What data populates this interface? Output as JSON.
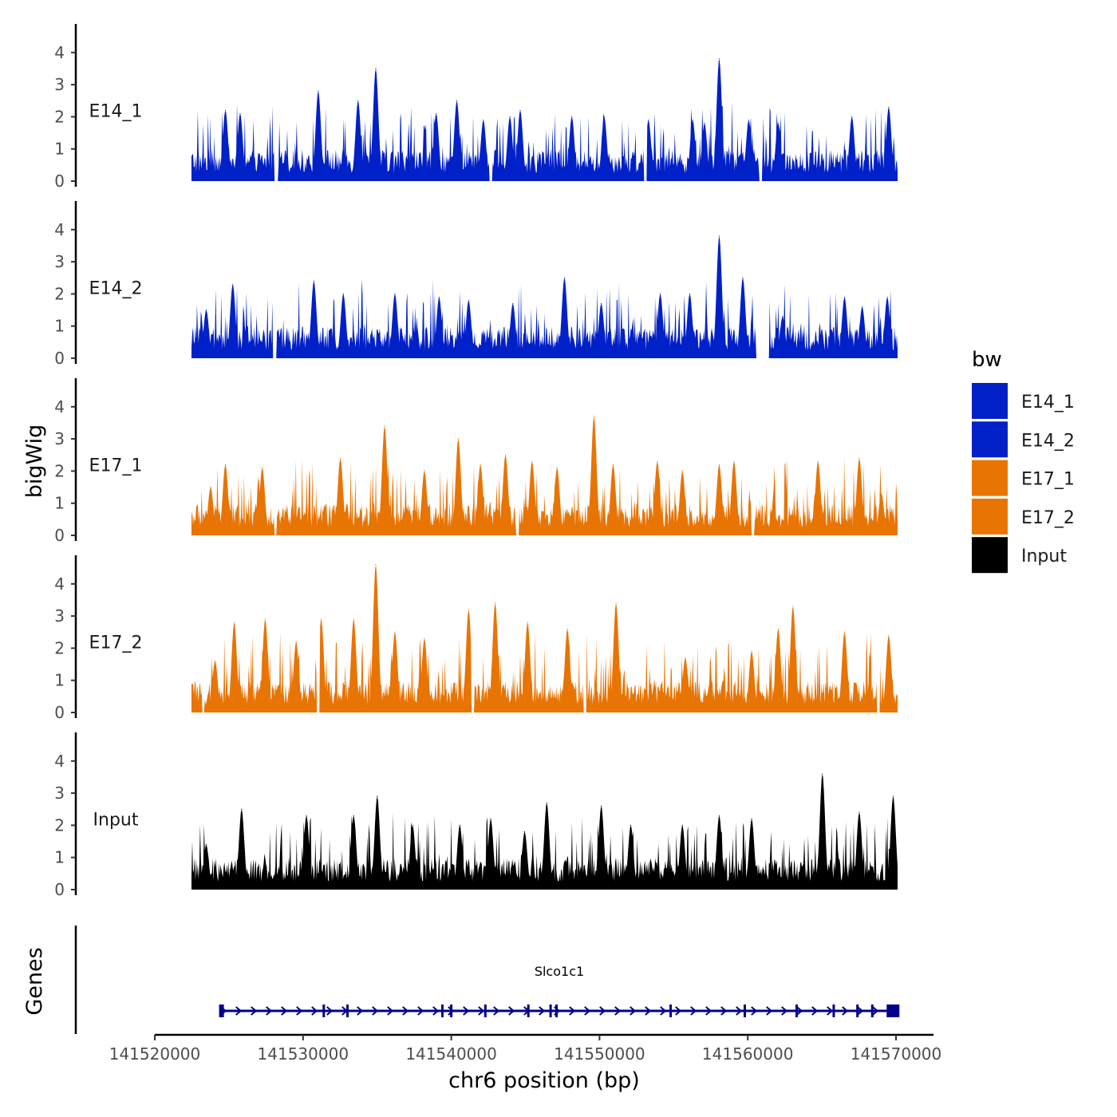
{
  "chart_data": {
    "type": "area",
    "chromosome": "chr6",
    "xlabel": "chr6 position (bp)",
    "ylabel": "bigWig",
    "genes_label": "Genes",
    "xlim": [
      141519000,
      141572000
    ],
    "x_ticks": [
      141520000,
      141530000,
      141540000,
      141550000,
      141560000,
      141570000
    ],
    "x_tick_labels": [
      "141520000",
      "141530000",
      "141540000",
      "141550000",
      "141560000",
      "141570000"
    ],
    "ylim": [
      0,
      4.8
    ],
    "y_ticks": [
      0,
      1,
      2,
      3,
      4
    ],
    "y_tick_labels": [
      "0",
      "1",
      "2",
      "3",
      "4"
    ],
    "signal_start": 141522200,
    "signal_end": 141570100,
    "legend": {
      "title": "bw",
      "position": "right",
      "entries": [
        {
          "name": "E14_1",
          "color": "#0020c8"
        },
        {
          "name": "E14_2",
          "color": "#0020c8"
        },
        {
          "name": "E17_1",
          "color": "#e87404"
        },
        {
          "name": "E17_2",
          "color": "#e87404"
        },
        {
          "name": "Input",
          "color": "#000000"
        }
      ]
    },
    "tracks": [
      {
        "name": "E14_1",
        "color": "#0020c8",
        "peaks": [
          [
            141524500,
            2.2
          ],
          [
            141525500,
            2.1
          ],
          [
            141530800,
            2.8
          ],
          [
            141533500,
            2.5
          ],
          [
            141534700,
            3.5
          ],
          [
            141538800,
            2.1
          ],
          [
            141540200,
            2.5
          ],
          [
            141542000,
            1.9
          ],
          [
            141543800,
            2.0
          ],
          [
            141544500,
            2.2
          ],
          [
            141548000,
            2.0
          ],
          [
            141550200,
            2.0
          ],
          [
            141553200,
            1.9
          ],
          [
            141556200,
            1.9
          ],
          [
            141557000,
            1.8
          ],
          [
            141558000,
            3.8
          ],
          [
            141560000,
            1.9
          ],
          [
            141562000,
            1.8
          ],
          [
            141567000,
            2.0
          ],
          [
            141569500,
            2.3
          ]
        ],
        "gaps": [
          [
            141527800,
            141528100
          ],
          [
            141542400,
            141542600
          ],
          [
            141552900,
            141553100
          ],
          [
            141560700,
            141560900
          ]
        ]
      },
      {
        "name": "E14_2",
        "color": "#0020c8",
        "peaks": [
          [
            141523200,
            1.5
          ],
          [
            141525000,
            2.3
          ],
          [
            141530500,
            2.4
          ],
          [
            141532500,
            2.0
          ],
          [
            141536000,
            2.0
          ],
          [
            141539000,
            1.9
          ],
          [
            141541000,
            1.8
          ],
          [
            141544000,
            1.7
          ],
          [
            141547500,
            2.5
          ],
          [
            141550000,
            1.7
          ],
          [
            141554000,
            2.0
          ],
          [
            141556000,
            2.0
          ],
          [
            141558000,
            3.8
          ],
          [
            141559600,
            2.5
          ],
          [
            141562300,
            1.3
          ],
          [
            141566500,
            1.9
          ],
          [
            141567700,
            1.6
          ],
          [
            141569400,
            1.9
          ]
        ],
        "gaps": [
          [
            141527700,
            141528000
          ],
          [
            141560500,
            141561400
          ]
        ]
      },
      {
        "name": "E17_1",
        "color": "#e87404",
        "peaks": [
          [
            141523500,
            1.5
          ],
          [
            141524500,
            2.2
          ],
          [
            141527000,
            2.1
          ],
          [
            141532300,
            2.4
          ],
          [
            141535300,
            3.4
          ],
          [
            141538000,
            2.0
          ],
          [
            141540300,
            3.0
          ],
          [
            141541800,
            2.2
          ],
          [
            141543500,
            2.5
          ],
          [
            141545300,
            2.3
          ],
          [
            141547000,
            2.1
          ],
          [
            141549500,
            3.7
          ],
          [
            141550800,
            2.2
          ],
          [
            141553800,
            2.3
          ],
          [
            141555500,
            2.0
          ],
          [
            141558000,
            2.2
          ],
          [
            141559000,
            2.3
          ],
          [
            141564700,
            2.3
          ],
          [
            141567500,
            2.4
          ],
          [
            141569000,
            1.3
          ]
        ],
        "gaps": [
          [
            141527800,
            141528000
          ],
          [
            141544200,
            141544400
          ],
          [
            141560200,
            141560400
          ]
        ]
      },
      {
        "name": "E17_2",
        "color": "#e87404",
        "peaks": [
          [
            141523800,
            1.6
          ],
          [
            141525100,
            2.8
          ],
          [
            141527200,
            2.9
          ],
          [
            141529300,
            2.2
          ],
          [
            141531000,
            2.9
          ],
          [
            141533200,
            2.9
          ],
          [
            141534700,
            4.6
          ],
          [
            141536000,
            2.5
          ],
          [
            141538000,
            2.3
          ],
          [
            141541000,
            3.2
          ],
          [
            141542800,
            3.4
          ],
          [
            141545000,
            2.8
          ],
          [
            141547700,
            2.6
          ],
          [
            141551000,
            3.4
          ],
          [
            141555700,
            1.7
          ],
          [
            141560200,
            1.9
          ],
          [
            141562000,
            2.6
          ],
          [
            141563000,
            3.3
          ],
          [
            141566500,
            2.5
          ],
          [
            141569500,
            2.4
          ]
        ],
        "gaps": [
          [
            141522900,
            141523100
          ],
          [
            141530700,
            141530900
          ],
          [
            141541200,
            141541400
          ],
          [
            141548800,
            141549000
          ],
          [
            141568700,
            141568900
          ]
        ]
      },
      {
        "name": "Input",
        "color": "#000000",
        "peaks": [
          [
            141523200,
            1.4
          ],
          [
            141525600,
            2.5
          ],
          [
            141530000,
            2.3
          ],
          [
            141533200,
            2.3
          ],
          [
            141534800,
            2.9
          ],
          [
            141537200,
            2.0
          ],
          [
            141540400,
            2.0
          ],
          [
            141542500,
            2.2
          ],
          [
            141544800,
            1.8
          ],
          [
            141546300,
            2.7
          ],
          [
            141550000,
            2.6
          ],
          [
            141552000,
            2.0
          ],
          [
            141555500,
            2.0
          ],
          [
            141558000,
            2.3
          ],
          [
            141560200,
            2.2
          ],
          [
            141565000,
            3.6
          ],
          [
            141567500,
            2.4
          ],
          [
            141569800,
            2.9
          ]
        ],
        "gaps": []
      }
    ],
    "gene": {
      "name": "Slco1c1",
      "start": 141524400,
      "end": 141570000,
      "strand": "+",
      "color": "#00008b",
      "exons": [
        141524500,
        141531400,
        141533000,
        141539400,
        141540000,
        141542300,
        141545200,
        141546700,
        141547100,
        141554800,
        141559800,
        141563300,
        141565800,
        141567400,
        141568400,
        141569800
      ]
    }
  }
}
